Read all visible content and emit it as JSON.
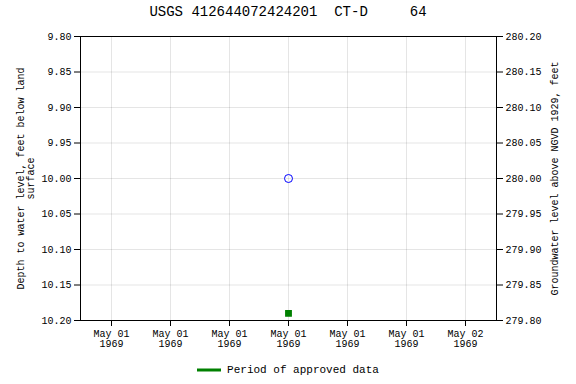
{
  "chart_data": {
    "type": "scatter",
    "title": "USGS 412644072424201  CT-D     64",
    "categories": [
      "May 01\n1969",
      "May 01\n1969",
      "May 01\n1969",
      "May 01\n1969",
      "May 01\n1969",
      "May 01\n1969",
      "May 02\n1969"
    ],
    "ylabel": "Depth to water level, feet below land\nsurface",
    "y2label": "Groundwater level above NGVD 1929, feet",
    "ylim": [
      10.2,
      9.8
    ],
    "yticks": [
      {
        "value": 9.8,
        "label": "9.80"
      },
      9.85,
      {
        "value": 9.9,
        "label": "9.90"
      },
      9.95,
      {
        "value": 10.0,
        "label": "10.00"
      },
      10.05,
      {
        "value": 10.1,
        "label": "10.10"
      },
      10.15,
      {
        "value": 10.2,
        "label": "10.20"
      }
    ],
    "y2lim": [
      279.8,
      280.2
    ],
    "y2ticks": [
      {
        "value": 280.2,
        "label": "280.20"
      },
      280.15,
      {
        "value": 280.1,
        "label": "280.10"
      },
      280.05,
      {
        "value": 280.0,
        "label": "280.00"
      },
      279.95,
      {
        "value": 279.9,
        "label": "279.90"
      },
      279.85,
      {
        "value": 279.8,
        "label": "279.80"
      }
    ],
    "series": [
      {
        "color": "#0000ff",
        "marker": "circle",
        "values": [
          null,
          null,
          null,
          10.0,
          null,
          null,
          null
        ]
      },
      {
        "name": "Period of approved data",
        "color": "#008000",
        "marker": "square",
        "values": [
          null,
          null,
          null,
          10.19,
          null,
          null,
          null
        ]
      }
    ],
    "grid": true,
    "legend": "bottom"
  }
}
